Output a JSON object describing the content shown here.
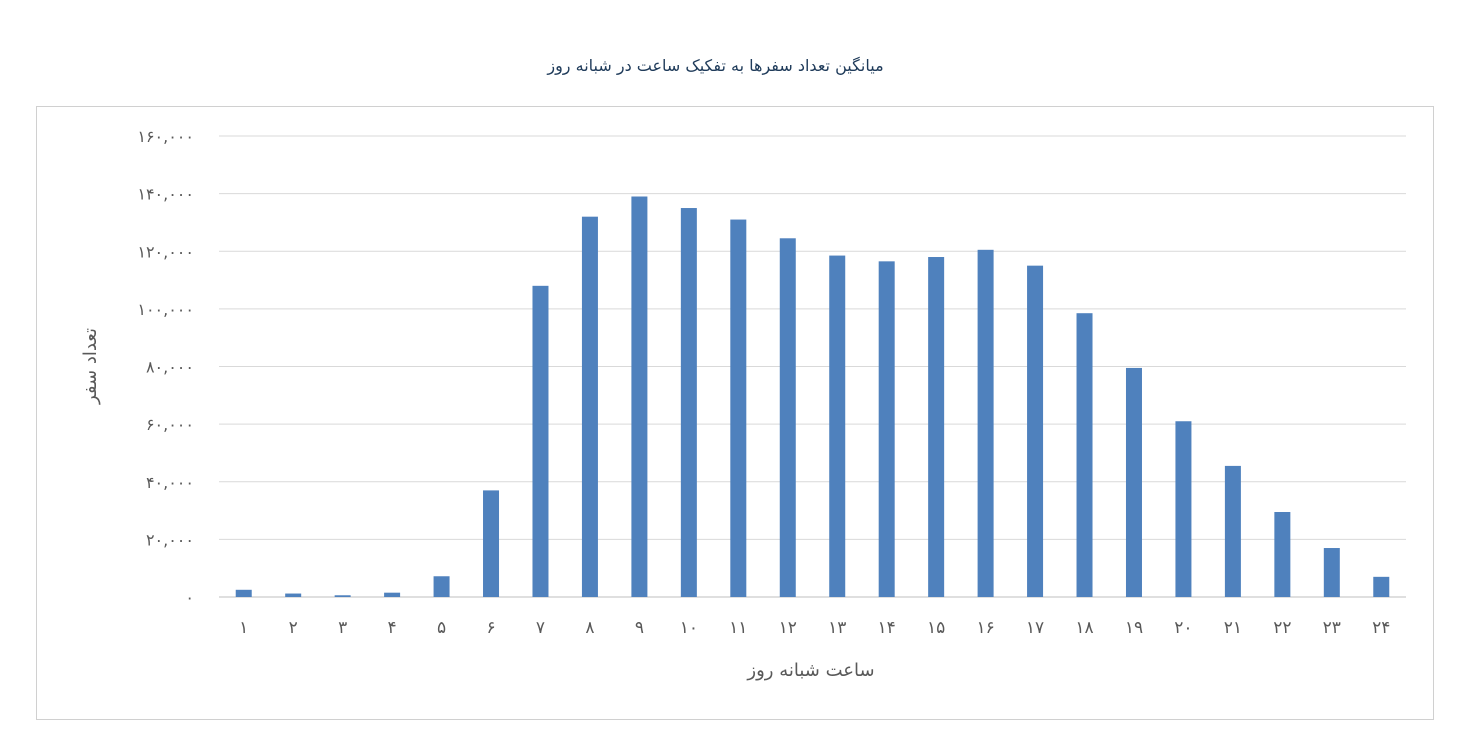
{
  "chart_data": {
    "type": "bar",
    "title": "میانگین تعداد سفرها به تفکیک ساعت در شبانه روز",
    "xlabel": "ساعت شبانه روز",
    "ylabel": "تعداد سفر",
    "ylim": [
      0,
      160000
    ],
    "grid": true,
    "color": "#4f81bd",
    "yticks": [
      0,
      20000,
      40000,
      60000,
      80000,
      100000,
      120000,
      140000,
      160000
    ],
    "ytick_labels": [
      "۰",
      "۲۰,۰۰۰",
      "۴۰,۰۰۰",
      "۶۰,۰۰۰",
      "۸۰,۰۰۰",
      "۱۰۰,۰۰۰",
      "۱۲۰,۰۰۰",
      "۱۴۰,۰۰۰",
      "۱۶۰,۰۰۰"
    ],
    "categories": [
      "۱",
      "۲",
      "۳",
      "۴",
      "۵",
      "۶",
      "۷",
      "۸",
      "۹",
      "۱۰",
      "۱۱",
      "۱۲",
      "۱۳",
      "۱۴",
      "۱۵",
      "۱۶",
      "۱۷",
      "۱۸",
      "۱۹",
      "۲۰",
      "۲۱",
      "۲۲",
      "۲۳",
      "۲۴"
    ],
    "values": [
      2500,
      1200,
      600,
      1500,
      7200,
      37000,
      108000,
      132000,
      139000,
      135000,
      131000,
      124500,
      118500,
      116500,
      118000,
      120500,
      115000,
      98500,
      79500,
      61000,
      45500,
      29500,
      17000,
      7000
    ]
  }
}
